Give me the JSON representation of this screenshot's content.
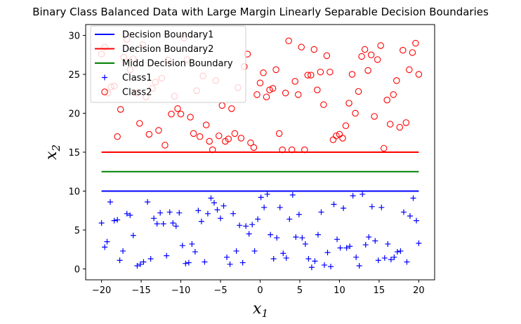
{
  "chart_data": {
    "type": "scatter",
    "title": "Binary Class Balanced Data with Large Margin Linearly Separable Decision Boundaries",
    "xlabel": "x",
    "xlabel_sub": "1",
    "ylabel": "x",
    "ylabel_sub": "2",
    "xlim": [
      -22,
      22
    ],
    "ylim": [
      -1.4,
      31.4
    ],
    "xticks": [
      -20,
      -15,
      -10,
      -5,
      0,
      5,
      10,
      15,
      20
    ],
    "yticks": [
      0,
      5,
      10,
      15,
      20,
      25,
      30
    ],
    "grid": false,
    "legend_position": "top-left",
    "lines": [
      {
        "name": "Decision Boundary1",
        "color": "#0000ff",
        "x": [
          -20,
          20
        ],
        "y": [
          10,
          10
        ]
      },
      {
        "name": "Decision Boundary2",
        "color": "#ff0000",
        "x": [
          -20,
          20
        ],
        "y": [
          15,
          15
        ]
      },
      {
        "name": "Midd Decision Boundary",
        "color": "#008000",
        "x": [
          -20,
          20
        ],
        "y": [
          12.5,
          12.5
        ]
      }
    ],
    "series": [
      {
        "name": "Class1",
        "marker": "plus",
        "color": "#0000ff",
        "points": [
          [
            -20.0,
            5.9
          ],
          [
            -19.6,
            2.8
          ],
          [
            -19.3,
            3.5
          ],
          [
            -18.9,
            8.6
          ],
          [
            -18.4,
            6.2
          ],
          [
            -18.0,
            6.3
          ],
          [
            -17.7,
            1.1
          ],
          [
            -17.3,
            2.3
          ],
          [
            -16.8,
            7.1
          ],
          [
            -16.4,
            6.9
          ],
          [
            -16.0,
            4.3
          ],
          [
            -15.5,
            0.4
          ],
          [
            -15.1,
            0.6
          ],
          [
            -14.7,
            0.9
          ],
          [
            -14.2,
            8.6
          ],
          [
            -13.8,
            1.3
          ],
          [
            -13.4,
            6.5
          ],
          [
            -13.0,
            5.8
          ],
          [
            -12.6,
            7.2
          ],
          [
            -12.2,
            5.8
          ],
          [
            -11.8,
            1.7
          ],
          [
            -11.4,
            7.3
          ],
          [
            -11.0,
            5.9
          ],
          [
            -10.6,
            5.5
          ],
          [
            -10.2,
            7.2
          ],
          [
            -9.8,
            3.0
          ],
          [
            -9.4,
            0.7
          ],
          [
            -9.0,
            0.8
          ],
          [
            -8.6,
            3.2
          ],
          [
            -8.2,
            2.2
          ],
          [
            -7.8,
            7.5
          ],
          [
            -7.4,
            6.1
          ],
          [
            -7.0,
            0.9
          ],
          [
            -6.6,
            7.1
          ],
          [
            -6.2,
            9.1
          ],
          [
            -5.8,
            8.5
          ],
          [
            -5.4,
            7.6
          ],
          [
            -5.0,
            6.5
          ],
          [
            -4.6,
            8.1
          ],
          [
            -4.2,
            1.5
          ],
          [
            -3.8,
            0.6
          ],
          [
            -3.4,
            7.1
          ],
          [
            -3.0,
            2.3
          ],
          [
            -2.6,
            5.6
          ],
          [
            -2.2,
            0.8
          ],
          [
            -1.8,
            5.5
          ],
          [
            -1.4,
            4.5
          ],
          [
            -1.0,
            5.7
          ],
          [
            -0.7,
            2.3
          ],
          [
            -0.3,
            6.4
          ],
          [
            0.1,
            9.2
          ],
          [
            0.5,
            7.9
          ],
          [
            0.9,
            9.6
          ],
          [
            1.3,
            4.4
          ],
          [
            1.7,
            1.3
          ],
          [
            2.1,
            4.0
          ],
          [
            2.5,
            7.9
          ],
          [
            2.9,
            2.0
          ],
          [
            3.3,
            1.4
          ],
          [
            3.7,
            6.4
          ],
          [
            4.1,
            9.5
          ],
          [
            4.5,
            4.1
          ],
          [
            4.9,
            7.0
          ],
          [
            5.3,
            4.0
          ],
          [
            5.7,
            3.2
          ],
          [
            6.1,
            1.3
          ],
          [
            6.5,
            0.2
          ],
          [
            6.9,
            1.0
          ],
          [
            7.3,
            4.4
          ],
          [
            7.7,
            7.3
          ],
          [
            8.1,
            0.5
          ],
          [
            8.5,
            2.1
          ],
          [
            8.9,
            0.3
          ],
          [
            9.3,
            8.3
          ],
          [
            9.7,
            3.8
          ],
          [
            10.1,
            2.7
          ],
          [
            10.5,
            7.8
          ],
          [
            10.9,
            2.7
          ],
          [
            11.3,
            2.9
          ],
          [
            11.7,
            9.4
          ],
          [
            12.1,
            1.5
          ],
          [
            12.5,
            0.4
          ],
          [
            12.9,
            9.6
          ],
          [
            13.3,
            3.1
          ],
          [
            13.7,
            4.1
          ],
          [
            14.1,
            8.0
          ],
          [
            14.5,
            3.6
          ],
          [
            14.9,
            1.1
          ],
          [
            15.3,
            7.9
          ],
          [
            15.7,
            1.4
          ],
          [
            16.1,
            3.2
          ],
          [
            16.5,
            1.2
          ],
          [
            16.9,
            1.5
          ],
          [
            17.3,
            2.2
          ],
          [
            17.7,
            2.3
          ],
          [
            18.1,
            7.3
          ],
          [
            18.5,
            0.9
          ],
          [
            18.9,
            6.8
          ],
          [
            19.3,
            9.1
          ],
          [
            19.7,
            6.2
          ],
          [
            20.0,
            3.3
          ]
        ]
      },
      {
        "name": "Class2",
        "marker": "circle",
        "color": "#ff0000",
        "points": [
          [
            -20.0,
            27.6
          ],
          [
            -19.6,
            28.5
          ],
          [
            -19.2,
            22.6
          ],
          [
            -18.8,
            23.4
          ],
          [
            -18.4,
            23.5
          ],
          [
            -18.0,
            17.0
          ],
          [
            -17.6,
            20.5
          ],
          [
            -17.2,
            27.2
          ],
          [
            -16.8,
            29.5
          ],
          [
            -16.4,
            25.6
          ],
          [
            -16.0,
            27.0
          ],
          [
            -15.6,
            22.6
          ],
          [
            -15.2,
            18.7
          ],
          [
            -14.8,
            28.8
          ],
          [
            -14.4,
            22.1
          ],
          [
            -14.0,
            17.3
          ],
          [
            -13.6,
            23.2
          ],
          [
            -13.2,
            24.0
          ],
          [
            -12.8,
            17.8
          ],
          [
            -12.4,
            24.5
          ],
          [
            -12.0,
            15.9
          ],
          [
            -11.6,
            26.8
          ],
          [
            -11.2,
            19.9
          ],
          [
            -10.8,
            22.2
          ],
          [
            -10.4,
            20.6
          ],
          [
            -10.0,
            19.9
          ],
          [
            -9.6,
            29.7
          ],
          [
            -9.2,
            26.9
          ],
          [
            -8.8,
            19.5
          ],
          [
            -8.4,
            17.4
          ],
          [
            -8.0,
            22.9
          ],
          [
            -7.6,
            17.0
          ],
          [
            -7.2,
            24.8
          ],
          [
            -6.8,
            18.5
          ],
          [
            -6.4,
            16.4
          ],
          [
            -6.0,
            15.3
          ],
          [
            -5.6,
            24.2
          ],
          [
            -5.2,
            17.1
          ],
          [
            -4.8,
            21.0
          ],
          [
            -4.4,
            16.4
          ],
          [
            -4.0,
            16.7
          ],
          [
            -3.6,
            20.6
          ],
          [
            -3.2,
            17.4
          ],
          [
            -2.8,
            23.3
          ],
          [
            -2.4,
            16.8
          ],
          [
            -2.0,
            26.0
          ],
          [
            -1.6,
            27.6
          ],
          [
            -1.2,
            16.2
          ],
          [
            -0.8,
            15.6
          ],
          [
            -0.4,
            22.4
          ],
          [
            0.0,
            23.9
          ],
          [
            0.4,
            25.2
          ],
          [
            0.8,
            22.1
          ],
          [
            1.2,
            23.0
          ],
          [
            1.6,
            23.2
          ],
          [
            2.0,
            25.6
          ],
          [
            2.4,
            17.4
          ],
          [
            2.8,
            15.3
          ],
          [
            3.2,
            22.6
          ],
          [
            3.6,
            29.3
          ],
          [
            4.0,
            15.3
          ],
          [
            4.4,
            24.1
          ],
          [
            4.8,
            22.4
          ],
          [
            5.2,
            28.5
          ],
          [
            5.6,
            15.3
          ],
          [
            6.0,
            24.9
          ],
          [
            6.4,
            24.9
          ],
          [
            6.8,
            28.2
          ],
          [
            7.2,
            23.0
          ],
          [
            7.6,
            25.3
          ],
          [
            8.0,
            21.1
          ],
          [
            8.4,
            27.4
          ],
          [
            8.8,
            25.3
          ],
          [
            9.2,
            16.6
          ],
          [
            9.6,
            17.1
          ],
          [
            10.0,
            17.3
          ],
          [
            10.4,
            16.8
          ],
          [
            10.8,
            18.4
          ],
          [
            11.2,
            21.3
          ],
          [
            11.6,
            25.0
          ],
          [
            12.0,
            20.0
          ],
          [
            12.4,
            22.8
          ],
          [
            12.8,
            27.3
          ],
          [
            13.2,
            28.2
          ],
          [
            13.6,
            25.5
          ],
          [
            14.0,
            27.5
          ],
          [
            14.4,
            19.6
          ],
          [
            14.8,
            26.9
          ],
          [
            15.2,
            28.7
          ],
          [
            15.6,
            15.5
          ],
          [
            16.0,
            21.7
          ],
          [
            16.4,
            18.6
          ],
          [
            16.8,
            22.4
          ],
          [
            17.2,
            24.2
          ],
          [
            17.6,
            18.2
          ],
          [
            18.0,
            28.1
          ],
          [
            18.4,
            18.8
          ],
          [
            18.8,
            25.6
          ],
          [
            19.2,
            27.8
          ],
          [
            19.6,
            29.0
          ],
          [
            20.0,
            25.0
          ]
        ]
      }
    ]
  }
}
